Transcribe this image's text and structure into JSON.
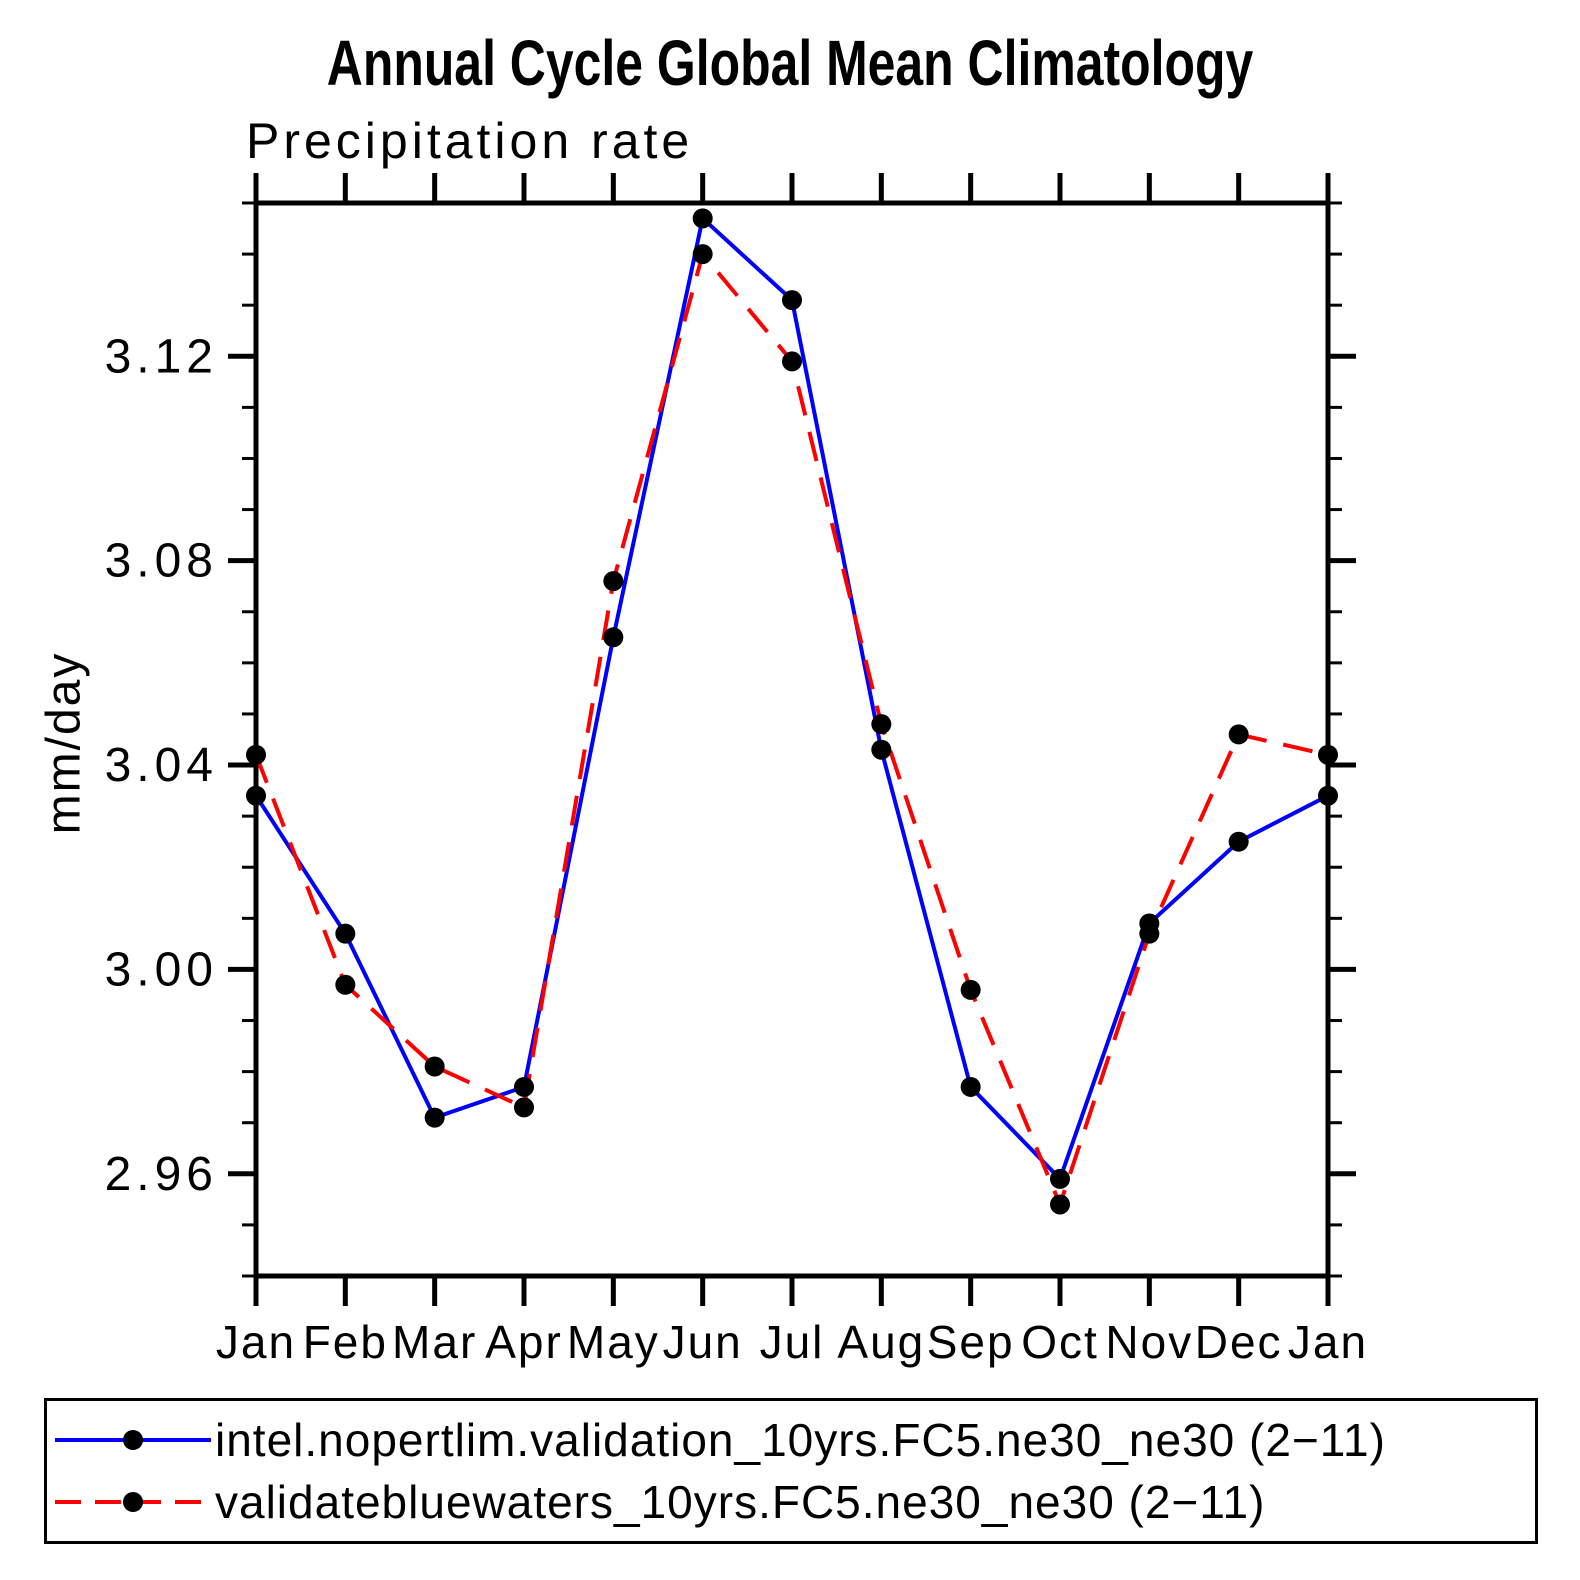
{
  "chart_data": {
    "type": "line",
    "title": "Annual Cycle Global Mean Climatology",
    "subtitle": "Precipitation rate",
    "ylabel": "mm/day",
    "categories": [
      "Jan",
      "Feb",
      "Mar",
      "Apr",
      "May",
      "Jun",
      "Jul",
      "Aug",
      "Sep",
      "Oct",
      "Nov",
      "Dec",
      "Jan"
    ],
    "ylim": [
      2.94,
      3.15
    ],
    "yticks_major": [
      2.96,
      3.0,
      3.04,
      3.08,
      3.12
    ],
    "ytick_labels": [
      "2.96",
      "3.00",
      "3.04",
      "3.08",
      "3.12"
    ],
    "minor_tick_step": 0.01,
    "grid": false,
    "legend_position": "bottom",
    "axis_color": "#000000",
    "marker_color": "#000000",
    "series": [
      {
        "name": "intel.nopertlim.validation_10yrs.FC5.ne30_ne30 (2−11)",
        "color": "#0000ff",
        "style": "solid",
        "values": [
          3.034,
          3.007,
          2.971,
          2.977,
          3.065,
          3.147,
          3.131,
          3.043,
          2.977,
          2.959,
          3.009,
          3.025,
          3.034
        ]
      },
      {
        "name": "validatebluewaters_10yrs.FC5.ne30_ne30 (2−11)",
        "color": "#ff0000",
        "style": "dashed",
        "values": [
          3.042,
          2.997,
          2.981,
          2.973,
          3.076,
          3.14,
          3.119,
          3.048,
          2.996,
          2.954,
          3.007,
          3.046,
          3.042
        ]
      }
    ]
  }
}
